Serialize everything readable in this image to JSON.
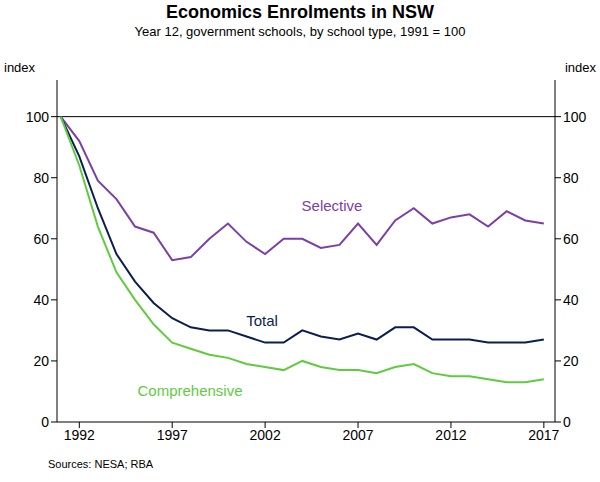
{
  "chart_data": {
    "type": "line",
    "title": "Economics Enrolments in NSW",
    "subtitle": "Year 12, government schools, by school type, 1991 = 100",
    "ylabel": "index",
    "y2label": "index",
    "source": "Sources: NESA; RBA",
    "x": [
      1991,
      1992,
      1993,
      1994,
      1995,
      1996,
      1997,
      1998,
      1999,
      2000,
      2001,
      2002,
      2003,
      2004,
      2005,
      2006,
      2007,
      2008,
      2009,
      2010,
      2011,
      2012,
      2013,
      2014,
      2015,
      2016,
      2017
    ],
    "xlim": [
      1990.8,
      2017.6
    ],
    "xticks": [
      1992,
      1997,
      2002,
      2007,
      2012,
      2017
    ],
    "ylim": [
      0,
      112
    ],
    "yticks": [
      0,
      20,
      40,
      60,
      80,
      100
    ],
    "y2lim": [
      0,
      112
    ],
    "y2ticks": [
      0,
      20,
      40,
      60,
      80,
      100
    ],
    "grid": false,
    "series": [
      {
        "name": "Selective",
        "color": "#7b3fa8",
        "values": [
          100,
          92,
          79,
          73,
          64,
          62,
          53,
          54,
          60,
          65,
          59,
          55,
          60,
          60,
          57,
          58,
          65,
          58,
          66,
          70,
          65,
          67,
          68,
          64,
          69,
          66,
          65
        ]
      },
      {
        "name": "Total",
        "color": "#0b1f4e",
        "values": [
          100,
          87,
          70,
          55,
          46,
          39,
          34,
          31,
          30,
          30,
          28,
          26,
          26,
          30,
          28,
          27,
          29,
          27,
          31,
          31,
          27,
          27,
          27,
          26,
          26,
          26,
          27
        ]
      },
      {
        "name": "Comprehensive",
        "color": "#5fcb3f",
        "values": [
          100,
          84,
          64,
          49,
          40,
          32,
          26,
          24,
          22,
          21,
          19,
          18,
          17,
          20,
          18,
          17,
          17,
          16,
          18,
          19,
          16,
          15,
          15,
          14,
          13,
          13,
          14
        ]
      }
    ]
  }
}
